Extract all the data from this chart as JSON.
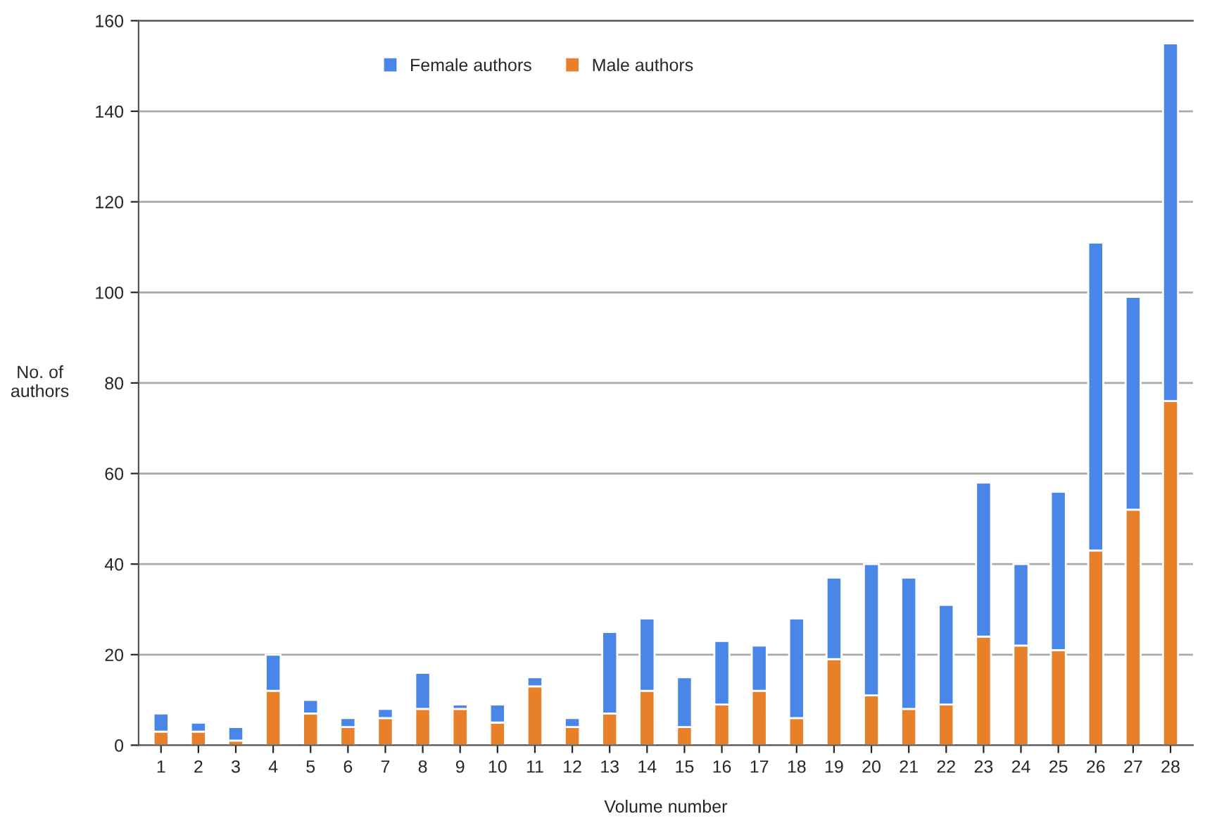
{
  "chart_data": {
    "type": "bar",
    "stacked": true,
    "categories": [
      "1",
      "2",
      "3",
      "4",
      "5",
      "6",
      "7",
      "8",
      "9",
      "10",
      "11",
      "12",
      "13",
      "14",
      "15",
      "16",
      "17",
      "18",
      "19",
      "20",
      "21",
      "22",
      "23",
      "24",
      "25",
      "26",
      "27",
      "28"
    ],
    "series": [
      {
        "name": "Male authors",
        "color": "#e8802a",
        "values": [
          3,
          3,
          1,
          12,
          7,
          4,
          6,
          8,
          8,
          5,
          13,
          4,
          7,
          12,
          4,
          9,
          12,
          6,
          19,
          11,
          8,
          9,
          24,
          22,
          21,
          43,
          52,
          76
        ]
      },
      {
        "name": "Female authors",
        "color": "#4a86e8",
        "values": [
          4,
          2,
          3,
          8,
          3,
          2,
          2,
          8,
          1,
          4,
          2,
          2,
          18,
          16,
          11,
          14,
          10,
          22,
          18,
          29,
          29,
          22,
          34,
          18,
          35,
          68,
          47,
          79
        ]
      }
    ],
    "xlabel": "Volume number",
    "ylabel": "No. of\nauthors",
    "ylim": [
      0,
      160
    ],
    "yticks": [
      0,
      20,
      40,
      60,
      80,
      100,
      120,
      140,
      160
    ],
    "grid": "y",
    "legend": "top"
  }
}
